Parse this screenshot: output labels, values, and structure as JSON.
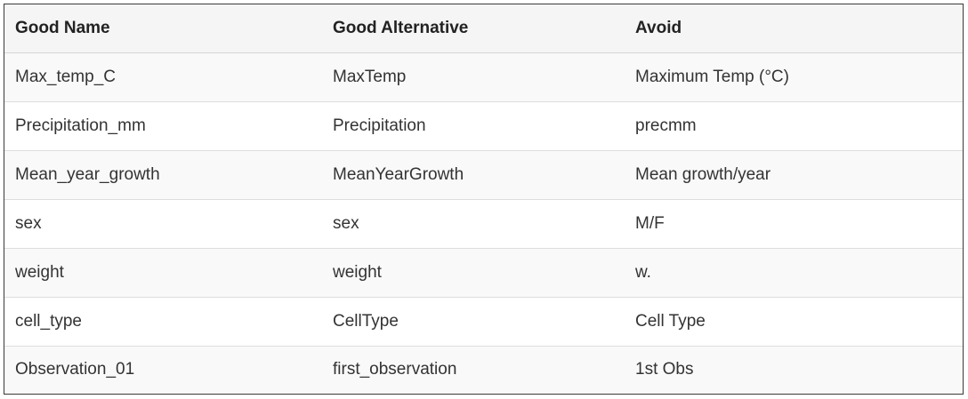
{
  "table": {
    "headers": [
      "Good Name",
      "Good Alternative",
      "Avoid"
    ],
    "rows": [
      [
        "Max_temp_C",
        "MaxTemp",
        "Maximum Temp (°C)"
      ],
      [
        "Precipitation_mm",
        "Precipitation",
        "precmm"
      ],
      [
        "Mean_year_growth",
        "MeanYearGrowth",
        "Mean growth/year"
      ],
      [
        "sex",
        "sex",
        "M/F"
      ],
      [
        "weight",
        "weight",
        "w."
      ],
      [
        "cell_type",
        "CellType",
        "Cell Type"
      ],
      [
        "Observation_01",
        "first_observation",
        "1st Obs"
      ]
    ]
  },
  "colors": {
    "header_bg": "#f5f5f5",
    "odd_row_bg": "#f9f9f9",
    "even_row_bg": "#ffffff",
    "border": "#dddddd",
    "outer_border": "#3a3a3a",
    "text": "#333333"
  }
}
